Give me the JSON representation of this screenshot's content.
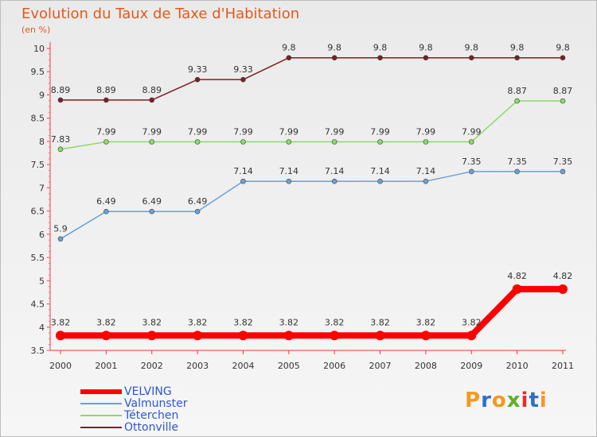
{
  "header": {
    "title": "Evolution du Taux de Taxe d'Habitation",
    "unit": "(en %)"
  },
  "logo": {
    "text": "Proxiti"
  },
  "chart_data": {
    "type": "line",
    "title": "Evolution du Taux de Taxe d'Habitation",
    "ylabel": "(en %)",
    "xlabel": "",
    "categories": [
      "2000",
      "2001",
      "2002",
      "2003",
      "2004",
      "2005",
      "2006",
      "2007",
      "2008",
      "2009",
      "2010",
      "2011"
    ],
    "ylim": [
      3.5,
      10
    ],
    "yticks": [
      "3.5",
      "4",
      "4.5",
      "5",
      "5.5",
      "6",
      "6.5",
      "7",
      "7.5",
      "8",
      "8.5",
      "9",
      "9.5",
      "10"
    ],
    "grid": false,
    "legend_position": "bottom-left",
    "series": [
      {
        "name": "VELVING",
        "color": "#ff0000",
        "thick": true,
        "values": [
          3.82,
          3.82,
          3.82,
          3.82,
          3.82,
          3.82,
          3.82,
          3.82,
          3.82,
          3.82,
          4.82,
          4.82
        ],
        "labels": [
          "3.82",
          "3.82",
          "3.82",
          "3.82",
          "3.82",
          "3.82",
          "3.82",
          "3.82",
          "3.82",
          "3.82",
          "4.82",
          "4.82"
        ]
      },
      {
        "name": "Valmunster",
        "color": "#6f9fd0",
        "thick": false,
        "values": [
          5.9,
          6.49,
          6.49,
          6.49,
          7.14,
          7.14,
          7.14,
          7.14,
          7.14,
          7.35,
          7.35,
          7.35
        ],
        "labels": [
          "5.9",
          "6.49",
          "6.49",
          "6.49",
          "7.14",
          "7.14",
          "7.14",
          "7.14",
          "7.14",
          "7.35",
          "7.35",
          "7.35"
        ]
      },
      {
        "name": "Téterchen",
        "color": "#8cd96a",
        "thick": false,
        "values": [
          7.83,
          7.99,
          7.99,
          7.99,
          7.99,
          7.99,
          7.99,
          7.99,
          7.99,
          7.99,
          8.87,
          8.87
        ],
        "labels": [
          "7.83",
          "7.99",
          "7.99",
          "7.99",
          "7.99",
          "7.99",
          "7.99",
          "7.99",
          "7.99",
          "7.99",
          "8.87",
          "8.87"
        ]
      },
      {
        "name": "Ottonville",
        "color": "#7b1f26",
        "thick": false,
        "values": [
          8.89,
          8.89,
          8.89,
          9.33,
          9.33,
          9.8,
          9.8,
          9.8,
          9.8,
          9.8,
          9.8,
          9.8
        ],
        "labels": [
          "8.89",
          "8.89",
          "8.89",
          "9.33",
          "9.33",
          "9.8",
          "9.8",
          "9.8",
          "9.8",
          "9.8",
          "9.8",
          "9.8"
        ]
      }
    ]
  }
}
